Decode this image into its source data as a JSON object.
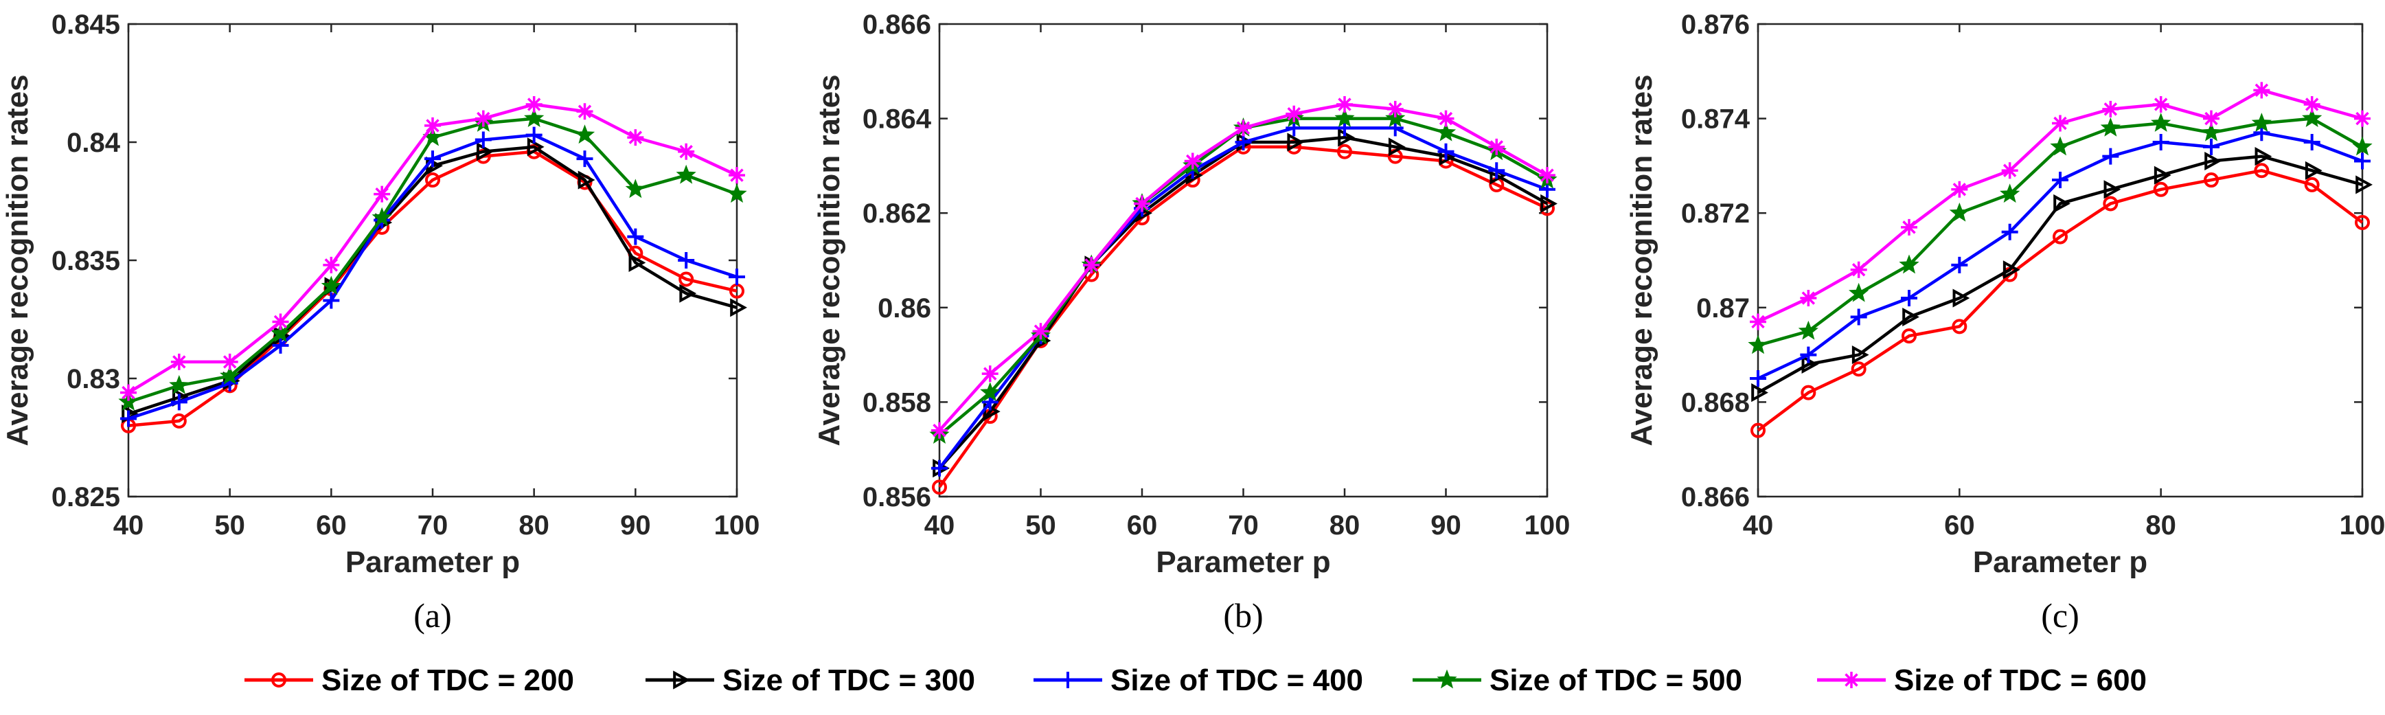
{
  "legend_order": [
    "Size of TDC = 200",
    "Size of TDC = 300",
    "Size of TDC = 400",
    "Size of TDC = 500",
    "Size of TDC = 600"
  ],
  "chart_data": [
    {
      "type": "line",
      "caption": "(a)",
      "xlabel": "Parameter p",
      "ylabel": "Average recognition rates",
      "xlim": [
        40,
        100
      ],
      "ylim": [
        0.825,
        0.845
      ],
      "xticks": [
        "40",
        "50",
        "60",
        "70",
        "80",
        "90",
        "100"
      ],
      "yticks": [
        "0.825",
        "0.83",
        "0.835",
        "0.84",
        "0.845"
      ],
      "x": [
        40,
        45,
        50,
        55,
        60,
        65,
        70,
        75,
        80,
        85,
        90,
        95,
        100
      ],
      "series": [
        {
          "name": "Size of TDC = 200",
          "color": "#ff0000",
          "marker": "circle",
          "values": [
            0.828,
            0.8282,
            0.8297,
            0.8317,
            0.8338,
            0.8364,
            0.8384,
            0.8394,
            0.8396,
            0.8383,
            0.8353,
            0.8342,
            0.8337
          ]
        },
        {
          "name": "Size of TDC = 300",
          "color": "#000000",
          "marker": "triangle-right",
          "values": [
            0.8285,
            0.8292,
            0.8299,
            0.8318,
            0.8339,
            0.8366,
            0.839,
            0.8396,
            0.8398,
            0.8384,
            0.8349,
            0.8336,
            0.833
          ]
        },
        {
          "name": "Size of TDC = 400",
          "color": "#0000ff",
          "marker": "plus",
          "values": [
            0.8283,
            0.829,
            0.8298,
            0.8314,
            0.8333,
            0.8367,
            0.8393,
            0.8401,
            0.8403,
            0.8393,
            0.836,
            0.835,
            0.8343
          ]
        },
        {
          "name": "Size of TDC = 500",
          "color": "#008000",
          "marker": "star",
          "values": [
            0.829,
            0.8297,
            0.8301,
            0.8319,
            0.8339,
            0.8368,
            0.8402,
            0.8408,
            0.841,
            0.8403,
            0.838,
            0.8386,
            0.8378
          ]
        },
        {
          "name": "Size of TDC = 600",
          "color": "#ff00ff",
          "marker": "asterisk",
          "values": [
            0.8294,
            0.8307,
            0.8307,
            0.8324,
            0.8348,
            0.8378,
            0.8407,
            0.841,
            0.8416,
            0.8413,
            0.8402,
            0.8396,
            0.8386
          ]
        }
      ]
    },
    {
      "type": "line",
      "caption": "(b)",
      "xlabel": "Parameter p",
      "ylabel": "Average recognition rates",
      "xlim": [
        40,
        100
      ],
      "ylim": [
        0.856,
        0.866
      ],
      "xticks": [
        "40",
        "50",
        "60",
        "70",
        "80",
        "90",
        "100"
      ],
      "yticks": [
        "0.856",
        "0.858",
        "0.86",
        "0.862",
        "0.864",
        "0.866"
      ],
      "x": [
        40,
        45,
        50,
        55,
        60,
        65,
        70,
        75,
        80,
        85,
        90,
        95,
        100
      ],
      "series": [
        {
          "name": "Size of TDC = 200",
          "color": "#ff0000",
          "marker": "circle",
          "values": [
            0.8562,
            0.8577,
            0.8593,
            0.8607,
            0.8619,
            0.8627,
            0.8634,
            0.8634,
            0.8633,
            0.8632,
            0.8631,
            0.8626,
            0.8621
          ]
        },
        {
          "name": "Size of TDC = 300",
          "color": "#000000",
          "marker": "triangle-right",
          "values": [
            0.8566,
            0.8578,
            0.8593,
            0.8609,
            0.862,
            0.8628,
            0.8635,
            0.8635,
            0.8636,
            0.8634,
            0.8632,
            0.8628,
            0.8622
          ]
        },
        {
          "name": "Size of TDC = 400",
          "color": "#0000ff",
          "marker": "plus",
          "values": [
            0.8566,
            0.858,
            0.8594,
            0.8609,
            0.8621,
            0.8629,
            0.8635,
            0.8638,
            0.8638,
            0.8638,
            0.8633,
            0.8629,
            0.8625
          ]
        },
        {
          "name": "Size of TDC = 500",
          "color": "#008000",
          "marker": "star",
          "values": [
            0.8573,
            0.8582,
            0.8594,
            0.8609,
            0.8622,
            0.863,
            0.8638,
            0.864,
            0.864,
            0.864,
            0.8637,
            0.8633,
            0.8627
          ]
        },
        {
          "name": "Size of TDC = 600",
          "color": "#ff00ff",
          "marker": "asterisk",
          "values": [
            0.8574,
            0.8586,
            0.8595,
            0.8609,
            0.8622,
            0.8631,
            0.8638,
            0.8641,
            0.8643,
            0.8642,
            0.864,
            0.8634,
            0.8628
          ]
        }
      ]
    },
    {
      "type": "line",
      "caption": "(c)",
      "xlabel": "Parameter p",
      "ylabel": "Average recognition rates",
      "xlim": [
        40,
        100
      ],
      "ylim": [
        0.866,
        0.876
      ],
      "xticks": [
        "40",
        "60",
        "80",
        "100"
      ],
      "yticks": [
        "0.866",
        "0.868",
        "0.87",
        "0.872",
        "0.874",
        "0.876"
      ],
      "x": [
        40,
        45,
        50,
        55,
        60,
        65,
        70,
        75,
        80,
        85,
        90,
        95,
        100
      ],
      "series": [
        {
          "name": "Size of TDC = 200",
          "color": "#ff0000",
          "marker": "circle",
          "values": [
            0.8674,
            0.8682,
            0.8687,
            0.8694,
            0.8696,
            0.8707,
            0.8715,
            0.8722,
            0.8725,
            0.8727,
            0.8729,
            0.8726,
            0.8718
          ]
        },
        {
          "name": "Size of TDC = 300",
          "color": "#000000",
          "marker": "triangle-right",
          "values": [
            0.8682,
            0.8688,
            0.869,
            0.8698,
            0.8702,
            0.8708,
            0.8722,
            0.8725,
            0.8728,
            0.8731,
            0.8732,
            0.8729,
            0.8726
          ]
        },
        {
          "name": "Size of TDC = 400",
          "color": "#0000ff",
          "marker": "plus",
          "values": [
            0.8685,
            0.869,
            0.8698,
            0.8702,
            0.8709,
            0.8716,
            0.8727,
            0.8732,
            0.8735,
            0.8734,
            0.8737,
            0.8735,
            0.8731
          ]
        },
        {
          "name": "Size of TDC = 500",
          "color": "#008000",
          "marker": "star",
          "values": [
            0.8692,
            0.8695,
            0.8703,
            0.8709,
            0.872,
            0.8724,
            0.8734,
            0.8738,
            0.8739,
            0.8737,
            0.8739,
            0.874,
            0.8734
          ]
        },
        {
          "name": "Size of TDC = 600",
          "color": "#ff00ff",
          "marker": "asterisk",
          "values": [
            0.8697,
            0.8702,
            0.8708,
            0.8717,
            0.8725,
            0.8729,
            0.8739,
            0.8742,
            0.8743,
            0.874,
            0.8746,
            0.8743,
            0.874
          ]
        }
      ]
    }
  ]
}
